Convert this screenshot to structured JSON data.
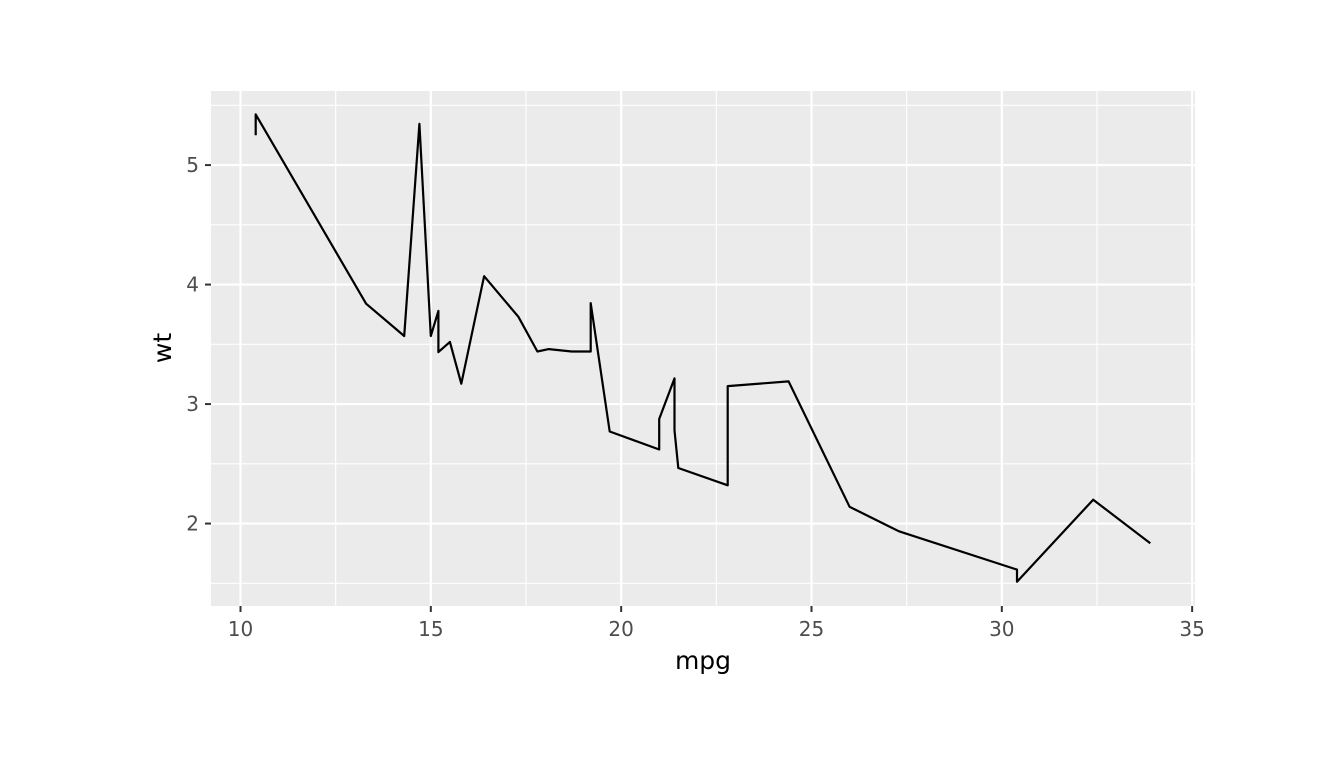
{
  "chart_data": {
    "type": "line",
    "title": "",
    "xlabel": "mpg",
    "ylabel": "wt",
    "xlim": [
      9.225,
      35.075
    ],
    "ylim": [
      1.31,
      5.62
    ],
    "x_ticks": [
      10,
      15,
      20,
      25,
      30,
      35
    ],
    "y_ticks": [
      2,
      3,
      4,
      5
    ],
    "grid": true,
    "legend": "none",
    "colors": {
      "panel": "#ebebeb",
      "grid": "#ffffff",
      "line": "#000000",
      "tick_text": "#4d4d4d",
      "tick_mark": "#333333"
    },
    "series": [
      {
        "x": [
          10.4,
          10.4,
          13.3,
          14.3,
          14.7,
          15.0,
          15.2,
          15.2,
          15.5,
          15.8,
          16.4,
          17.3,
          17.8,
          18.1,
          18.7,
          19.2,
          19.2,
          19.7,
          21.0,
          21.0,
          21.4,
          21.4,
          21.5,
          22.8,
          22.8,
          24.4,
          26.0,
          27.3,
          30.4,
          30.4,
          32.4,
          33.9
        ],
        "y": [
          5.25,
          5.424,
          3.84,
          3.57,
          5.345,
          3.57,
          3.78,
          3.435,
          3.52,
          3.17,
          4.07,
          3.73,
          3.44,
          3.46,
          3.44,
          3.44,
          3.845,
          2.77,
          2.62,
          2.875,
          3.215,
          2.78,
          2.465,
          2.32,
          3.15,
          3.19,
          2.14,
          1.935,
          1.615,
          1.513,
          2.2,
          1.835
        ]
      }
    ]
  }
}
